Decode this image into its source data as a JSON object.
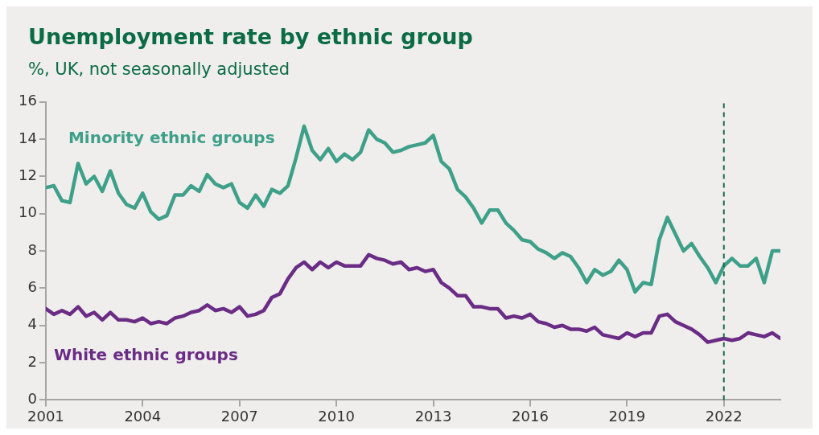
{
  "chart_data": {
    "type": "line",
    "title": "Unemployment rate by ethnic group",
    "subtitle": "%, UK, not seasonally adjusted",
    "x": [
      2001,
      2001.25,
      2001.5,
      2001.75,
      2002,
      2002.25,
      2002.5,
      2002.75,
      2003,
      2003.25,
      2003.5,
      2003.75,
      2004,
      2004.25,
      2004.5,
      2004.75,
      2005,
      2005.25,
      2005.5,
      2005.75,
      2006,
      2006.25,
      2006.5,
      2006.75,
      2007,
      2007.25,
      2007.5,
      2007.75,
      2008,
      2008.25,
      2008.5,
      2008.75,
      2009,
      2009.25,
      2009.5,
      2009.75,
      2010,
      2010.25,
      2010.5,
      2010.75,
      2011,
      2011.25,
      2011.5,
      2011.75,
      2012,
      2012.25,
      2012.5,
      2012.75,
      2013,
      2013.25,
      2013.5,
      2013.75,
      2014,
      2014.25,
      2014.5,
      2014.75,
      2015,
      2015.25,
      2015.5,
      2015.75,
      2016,
      2016.25,
      2016.5,
      2016.75,
      2017,
      2017.25,
      2017.5,
      2017.75,
      2018,
      2018.25,
      2018.5,
      2018.75,
      2019,
      2019.25,
      2019.5,
      2019.75,
      2020,
      2020.25,
      2020.5,
      2020.75,
      2021,
      2021.25,
      2021.5,
      2021.75,
      2022,
      2022.25,
      2022.5,
      2022.75,
      2023,
      2023.25,
      2023.5,
      2023.75
    ],
    "series": [
      {
        "name": "Minority ethnic groups",
        "color": "#3fa08a",
        "values": [
          11.4,
          11.5,
          10.7,
          10.6,
          12.7,
          11.6,
          12.0,
          11.2,
          12.3,
          11.1,
          10.5,
          10.3,
          11.1,
          10.1,
          9.7,
          9.9,
          11.0,
          11.0,
          11.5,
          11.2,
          12.1,
          11.6,
          11.4,
          11.6,
          10.6,
          10.3,
          11.0,
          10.4,
          11.3,
          11.1,
          11.5,
          13.0,
          14.7,
          13.4,
          12.9,
          13.5,
          12.8,
          13.2,
          12.9,
          13.3,
          14.5,
          14.0,
          13.8,
          13.3,
          13.4,
          13.6,
          13.7,
          13.8,
          14.2,
          12.8,
          12.4,
          11.3,
          10.9,
          10.3,
          9.5,
          10.2,
          10.2,
          9.5,
          9.1,
          8.6,
          8.5,
          8.1,
          7.9,
          7.6,
          7.9,
          7.7,
          7.1,
          6.3,
          7.0,
          6.7,
          6.9,
          7.5,
          7.0,
          5.8,
          6.3,
          6.2,
          8.6,
          9.8,
          8.9,
          8.0,
          8.4,
          7.7,
          7.1,
          6.3,
          7.2,
          7.6,
          7.2,
          7.2,
          7.6,
          6.3,
          8.0,
          8.0
        ]
      },
      {
        "name": "White ethnic groups",
        "color": "#6a2c85",
        "values": [
          4.9,
          4.6,
          4.8,
          4.6,
          5.0,
          4.5,
          4.7,
          4.3,
          4.7,
          4.3,
          4.3,
          4.2,
          4.4,
          4.1,
          4.2,
          4.1,
          4.4,
          4.5,
          4.7,
          4.8,
          5.1,
          4.8,
          4.9,
          4.7,
          5.0,
          4.5,
          4.6,
          4.8,
          5.5,
          5.7,
          6.5,
          7.1,
          7.4,
          7.0,
          7.4,
          7.1,
          7.4,
          7.2,
          7.2,
          7.2,
          7.8,
          7.6,
          7.5,
          7.3,
          7.4,
          7.0,
          7.1,
          6.9,
          7.0,
          6.3,
          6.0,
          5.6,
          5.6,
          5.0,
          5.0,
          4.9,
          4.9,
          4.4,
          4.5,
          4.4,
          4.6,
          4.2,
          4.1,
          3.9,
          4.0,
          3.8,
          3.8,
          3.7,
          3.9,
          3.5,
          3.4,
          3.3,
          3.6,
          3.4,
          3.6,
          3.6,
          4.5,
          4.6,
          4.2,
          4.0,
          3.8,
          3.5,
          3.1,
          3.2,
          3.3,
          3.2,
          3.3,
          3.6,
          3.5,
          3.4,
          3.6,
          3.3
        ]
      }
    ],
    "xlim": [
      2001,
      2023.75
    ],
    "xticks": [
      2001,
      2004,
      2007,
      2010,
      2013,
      2016,
      2019,
      2022
    ],
    "ylim": [
      0,
      16
    ],
    "yticks": [
      0,
      2,
      4,
      6,
      8,
      10,
      12,
      14,
      16
    ],
    "grid": false,
    "legend": false,
    "marker": "none",
    "line_style": "solid",
    "ref_lines": [
      {
        "axis": "x",
        "value": 2022,
        "color": "#1b6b4c",
        "line_style": "dashed"
      }
    ]
  }
}
